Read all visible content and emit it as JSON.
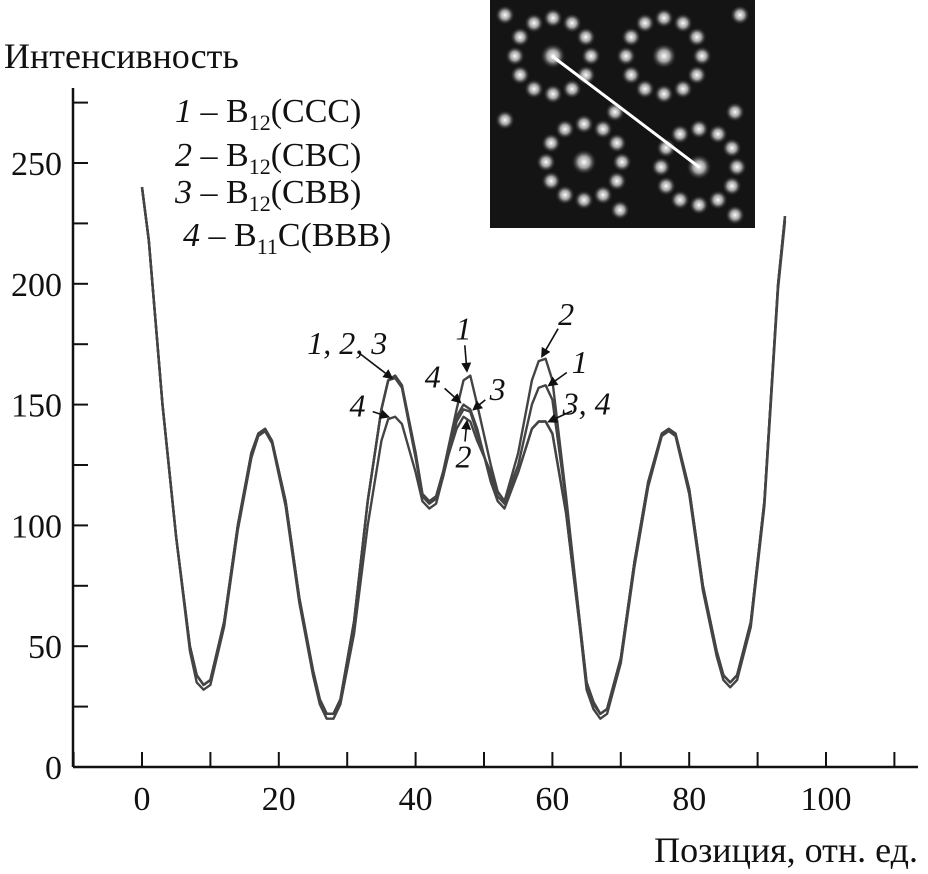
{
  "chart_data": {
    "type": "line",
    "ylabel": "Интенсивность",
    "xlabel": "Позиция, отн. ед.",
    "xlim": [
      -10,
      113
    ],
    "ylim": [
      0,
      280
    ],
    "xticks": [
      0,
      20,
      40,
      60,
      80,
      100
    ],
    "yticks": [
      0,
      50,
      100,
      150,
      200,
      250
    ],
    "legend_position": "top-left",
    "legend": [
      {
        "num": "1",
        "dash": " – ",
        "base": "B",
        "sub": "12",
        "rest": "(CCC)"
      },
      {
        "num": "2",
        "dash": " – ",
        "base": "B",
        "sub": "12",
        "rest": "(CBC)"
      },
      {
        "num": "3",
        "dash": " – ",
        "base": "B",
        "sub": "12",
        "rest": "(CBB)"
      },
      {
        "num": "4",
        "dash": " – ",
        "base": "B",
        "sub": "11",
        "rest": "C(BBB)"
      }
    ],
    "line_color": "#444444",
    "series": [
      {
        "name": "1",
        "points": [
          [
            0,
            240
          ],
          [
            1,
            218
          ],
          [
            3,
            150
          ],
          [
            5,
            95
          ],
          [
            7,
            50
          ],
          [
            8,
            38
          ],
          [
            9,
            34
          ],
          [
            10,
            36
          ],
          [
            12,
            60
          ],
          [
            14,
            100
          ],
          [
            16,
            130
          ],
          [
            17,
            138
          ],
          [
            18,
            140
          ],
          [
            19,
            135
          ],
          [
            21,
            110
          ],
          [
            23,
            70
          ],
          [
            25,
            40
          ],
          [
            26,
            28
          ],
          [
            27,
            22
          ],
          [
            28,
            22
          ],
          [
            29,
            28
          ],
          [
            31,
            60
          ],
          [
            33,
            110
          ],
          [
            35,
            148
          ],
          [
            36,
            160
          ],
          [
            37,
            162
          ],
          [
            38,
            158
          ],
          [
            40,
            130
          ],
          [
            41,
            113
          ],
          [
            42,
            110
          ],
          [
            43,
            112
          ],
          [
            44,
            122
          ],
          [
            46,
            148
          ],
          [
            47,
            160
          ],
          [
            48,
            162
          ],
          [
            49,
            150
          ],
          [
            51,
            125
          ],
          [
            52,
            114
          ],
          [
            53,
            110
          ],
          [
            55,
            125
          ],
          [
            57,
            150
          ],
          [
            58,
            157
          ],
          [
            59,
            158
          ],
          [
            60,
            152
          ],
          [
            62,
            110
          ],
          [
            64,
            60
          ],
          [
            65,
            35
          ],
          [
            66,
            27
          ],
          [
            67,
            22
          ],
          [
            68,
            24
          ],
          [
            70,
            45
          ],
          [
            72,
            85
          ],
          [
            74,
            118
          ],
          [
            76,
            138
          ],
          [
            77,
            140
          ],
          [
            78,
            138
          ],
          [
            80,
            115
          ],
          [
            82,
            75
          ],
          [
            84,
            48
          ],
          [
            85,
            38
          ],
          [
            86,
            35
          ],
          [
            87,
            38
          ],
          [
            89,
            60
          ],
          [
            91,
            110
          ],
          [
            93,
            200
          ],
          [
            94,
            228
          ]
        ]
      },
      {
        "name": "2",
        "points": [
          [
            0,
            240
          ],
          [
            1,
            218
          ],
          [
            3,
            150
          ],
          [
            5,
            95
          ],
          [
            7,
            50
          ],
          [
            8,
            38
          ],
          [
            9,
            34
          ],
          [
            10,
            36
          ],
          [
            12,
            60
          ],
          [
            14,
            100
          ],
          [
            16,
            130
          ],
          [
            17,
            138
          ],
          [
            18,
            140
          ],
          [
            19,
            135
          ],
          [
            21,
            110
          ],
          [
            23,
            70
          ],
          [
            25,
            40
          ],
          [
            26,
            28
          ],
          [
            27,
            22
          ],
          [
            28,
            22
          ],
          [
            29,
            28
          ],
          [
            31,
            60
          ],
          [
            33,
            110
          ],
          [
            35,
            148
          ],
          [
            36,
            160
          ],
          [
            37,
            162
          ],
          [
            38,
            158
          ],
          [
            40,
            130
          ],
          [
            41,
            113
          ],
          [
            42,
            110
          ],
          [
            43,
            112
          ],
          [
            44,
            122
          ],
          [
            46,
            140
          ],
          [
            47,
            145
          ],
          [
            48,
            143
          ],
          [
            49,
            135
          ],
          [
            51,
            122
          ],
          [
            52,
            114
          ],
          [
            53,
            110
          ],
          [
            55,
            130
          ],
          [
            57,
            160
          ],
          [
            58,
            168
          ],
          [
            59,
            169
          ],
          [
            60,
            160
          ],
          [
            62,
            112
          ],
          [
            64,
            60
          ],
          [
            65,
            35
          ],
          [
            66,
            27
          ],
          [
            67,
            22
          ],
          [
            68,
            24
          ],
          [
            70,
            45
          ],
          [
            72,
            85
          ],
          [
            74,
            118
          ],
          [
            76,
            138
          ],
          [
            77,
            140
          ],
          [
            78,
            138
          ],
          [
            80,
            115
          ],
          [
            82,
            75
          ],
          [
            84,
            48
          ],
          [
            85,
            38
          ],
          [
            86,
            35
          ],
          [
            87,
            38
          ],
          [
            89,
            60
          ],
          [
            91,
            110
          ],
          [
            93,
            200
          ],
          [
            94,
            228
          ]
        ]
      },
      {
        "name": "3",
        "points": [
          [
            0,
            240
          ],
          [
            1,
            218
          ],
          [
            3,
            150
          ],
          [
            5,
            95
          ],
          [
            7,
            50
          ],
          [
            8,
            38
          ],
          [
            9,
            34
          ],
          [
            10,
            36
          ],
          [
            12,
            60
          ],
          [
            14,
            100
          ],
          [
            16,
            130
          ],
          [
            17,
            138
          ],
          [
            18,
            140
          ],
          [
            19,
            135
          ],
          [
            21,
            110
          ],
          [
            23,
            70
          ],
          [
            25,
            40
          ],
          [
            26,
            28
          ],
          [
            27,
            22
          ],
          [
            28,
            22
          ],
          [
            29,
            28
          ],
          [
            31,
            60
          ],
          [
            33,
            110
          ],
          [
            35,
            148
          ],
          [
            36,
            160
          ],
          [
            37,
            161
          ],
          [
            38,
            157
          ],
          [
            40,
            128
          ],
          [
            41,
            112
          ],
          [
            42,
            109
          ],
          [
            43,
            111
          ],
          [
            44,
            120
          ],
          [
            46,
            143
          ],
          [
            47,
            148
          ],
          [
            48,
            147
          ],
          [
            49,
            138
          ],
          [
            51,
            120
          ],
          [
            52,
            112
          ],
          [
            53,
            109
          ],
          [
            55,
            122
          ],
          [
            57,
            140
          ],
          [
            58,
            143
          ],
          [
            59,
            143
          ],
          [
            60,
            138
          ],
          [
            62,
            105
          ],
          [
            64,
            58
          ],
          [
            65,
            34
          ],
          [
            66,
            26
          ],
          [
            67,
            22
          ],
          [
            68,
            24
          ],
          [
            70,
            45
          ],
          [
            72,
            85
          ],
          [
            74,
            118
          ],
          [
            76,
            138
          ],
          [
            77,
            140
          ],
          [
            78,
            138
          ],
          [
            80,
            115
          ],
          [
            82,
            75
          ],
          [
            84,
            48
          ],
          [
            85,
            38
          ],
          [
            86,
            35
          ],
          [
            87,
            38
          ],
          [
            89,
            60
          ],
          [
            91,
            110
          ],
          [
            93,
            200
          ],
          [
            94,
            228
          ]
        ]
      },
      {
        "name": "4",
        "points": [
          [
            0,
            240
          ],
          [
            1,
            218
          ],
          [
            3,
            150
          ],
          [
            5,
            95
          ],
          [
            7,
            48
          ],
          [
            8,
            35
          ],
          [
            9,
            32
          ],
          [
            10,
            34
          ],
          [
            12,
            58
          ],
          [
            14,
            98
          ],
          [
            16,
            128
          ],
          [
            17,
            137
          ],
          [
            18,
            139
          ],
          [
            19,
            134
          ],
          [
            21,
            108
          ],
          [
            23,
            68
          ],
          [
            25,
            38
          ],
          [
            26,
            26
          ],
          [
            27,
            20
          ],
          [
            28,
            20
          ],
          [
            29,
            26
          ],
          [
            31,
            55
          ],
          [
            33,
            100
          ],
          [
            35,
            135
          ],
          [
            36,
            144
          ],
          [
            37,
            145
          ],
          [
            38,
            142
          ],
          [
            40,
            122
          ],
          [
            41,
            110
          ],
          [
            42,
            107
          ],
          [
            43,
            109
          ],
          [
            44,
            120
          ],
          [
            46,
            145
          ],
          [
            47,
            150
          ],
          [
            48,
            148
          ],
          [
            49,
            140
          ],
          [
            51,
            118
          ],
          [
            52,
            110
          ],
          [
            53,
            107
          ],
          [
            55,
            122
          ],
          [
            57,
            140
          ],
          [
            58,
            143
          ],
          [
            59,
            143
          ],
          [
            60,
            138
          ],
          [
            62,
            105
          ],
          [
            64,
            58
          ],
          [
            65,
            32
          ],
          [
            66,
            24
          ],
          [
            67,
            20
          ],
          [
            68,
            22
          ],
          [
            70,
            43
          ],
          [
            72,
            83
          ],
          [
            74,
            116
          ],
          [
            76,
            137
          ],
          [
            77,
            139
          ],
          [
            78,
            137
          ],
          [
            80,
            113
          ],
          [
            82,
            73
          ],
          [
            84,
            46
          ],
          [
            85,
            36
          ],
          [
            86,
            33
          ],
          [
            87,
            36
          ],
          [
            89,
            58
          ],
          [
            91,
            108
          ],
          [
            93,
            198
          ],
          [
            94,
            226
          ]
        ]
      }
    ],
    "annotations": [
      {
        "text": "1, 2, 3",
        "x": 30,
        "y": 171,
        "arrow_to": [
          36.5,
          161
        ]
      },
      {
        "text": "4",
        "x": 31.5,
        "y": 145,
        "arrow_to": [
          36,
          145
        ]
      },
      {
        "text": "1",
        "x": 47,
        "y": 177,
        "arrow_to": [
          47.5,
          164
        ]
      },
      {
        "text": "4",
        "x": 42.5,
        "y": 157,
        "arrow_to": [
          46.5,
          151
        ]
      },
      {
        "text": "3",
        "x": 52,
        "y": 152,
        "arrow_to": [
          48.5,
          148
        ]
      },
      {
        "text": "2",
        "x": 47,
        "y": 124,
        "arrow_to": [
          47.5,
          143
        ]
      },
      {
        "text": "2",
        "x": 62,
        "y": 183,
        "arrow_to": [
          58.5,
          170
        ]
      },
      {
        "text": "1",
        "x": 64,
        "y": 163,
        "arrow_to": [
          59.5,
          158
        ]
      },
      {
        "text": "3, 4",
        "x": 65,
        "y": 146,
        "arrow_to": [
          59.5,
          143
        ]
      }
    ]
  }
}
